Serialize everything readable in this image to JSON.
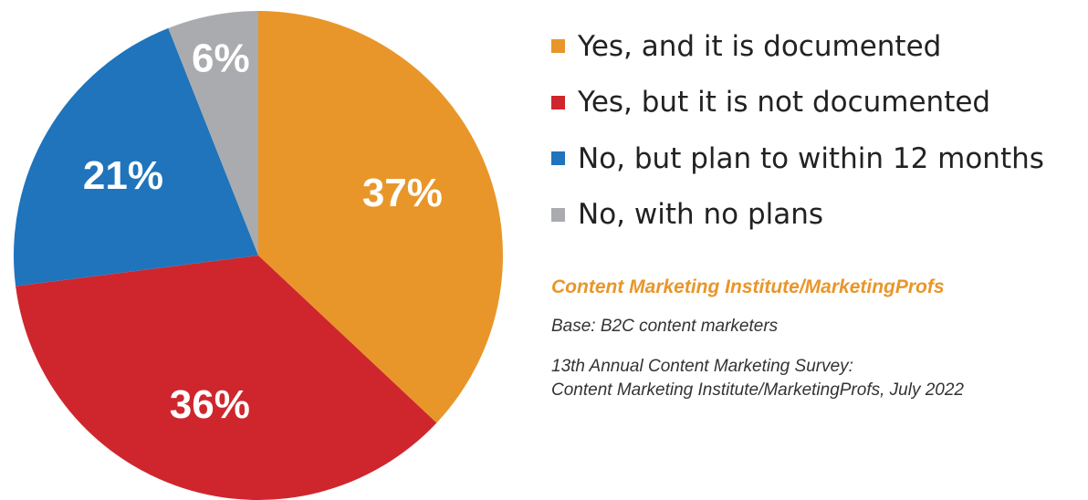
{
  "chart_data": {
    "type": "pie",
    "slices": [
      {
        "label": "Yes, and it is documented",
        "value": 37,
        "display": "37%",
        "color": "#e8962a"
      },
      {
        "label": "Yes, but it is not documented",
        "value": 36,
        "display": "36%",
        "color": "#cf262d"
      },
      {
        "label": "No, but plan to within 12 months",
        "value": 21,
        "display": "21%",
        "color": "#1f74bc"
      },
      {
        "label": "No, with no plans",
        "value": 6,
        "display": "6%",
        "color": "#aaabae"
      }
    ],
    "start_angle": "12 o'clock",
    "direction": "clockwise",
    "legend_position": "right"
  },
  "source": {
    "title": "Content Marketing Institute/MarketingProfs",
    "base": "Base: B2C content marketers",
    "survey_line1": "13th Annual Content Marketing Survey:",
    "survey_line2": "Content Marketing Institute/MarketingProfs, July 2022"
  }
}
